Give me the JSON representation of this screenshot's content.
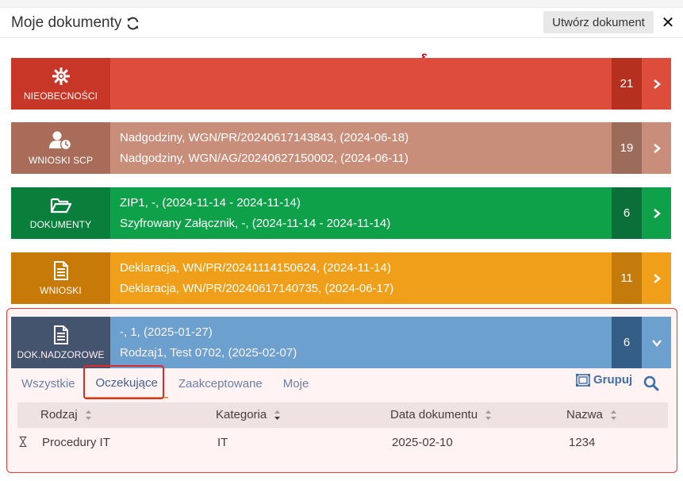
{
  "header": {
    "title": "Moje dokumenty",
    "create_label": "Utwórz dokument",
    "close_label": "✕"
  },
  "tiles": [
    {
      "label": "NIEOBECNOŚCI",
      "icon": "gear-icon",
      "lines": [
        "",
        ""
      ],
      "count": "21",
      "color": "#de4c3b"
    },
    {
      "label": "WNIOSKI SCP",
      "icon": "user-clock-icon",
      "lines": [
        "Nadgodziny, WGN/PR/20240617143843, (2024-06-18)",
        "Nadgodziny, WGN/AG/20240627150002, (2024-06-11)"
      ],
      "count": "19",
      "color": "#c98e7a"
    },
    {
      "label": "DOKUMENTY",
      "icon": "folder-open-icon",
      "lines": [
        "ZIP1, -, (2024-11-14 - 2024-11-14)",
        "Szyfrowany Załącznik, -, (2024-11-14 - 2024-11-14)"
      ],
      "count": "6",
      "color": "#0fa04a"
    },
    {
      "label": "WNIOSKI",
      "icon": "document-icon",
      "lines": [
        "Deklaracja, WN/PR/20241114150624, (2024-11-14)",
        "Deklaracja, WN/PR/20240617140735, (2024-06-17)"
      ],
      "count": "11",
      "color": "#ef9f19"
    },
    {
      "label": "DOK.NADZOROWE",
      "icon": "document-icon",
      "lines": [
        "-, 1, (2025-01-27)",
        "Rodzaj1, Test 0702, (2025-02-07)"
      ],
      "count": "6",
      "color": "#5ca3d6"
    }
  ],
  "panel": {
    "tabs": [
      "Wszystkie",
      "Oczekujące",
      "Zaakceptowane",
      "Moje"
    ],
    "active_tab": "Oczekujące",
    "group_label": "Grupuj",
    "columns": [
      "Rodzaj",
      "Kategoria",
      "Data dokumentu",
      "Nazwa"
    ],
    "rows": [
      {
        "rodzaj": "Procedury IT",
        "kategoria": "IT",
        "data": "2025-02-10",
        "nazwa": "1234"
      }
    ]
  }
}
